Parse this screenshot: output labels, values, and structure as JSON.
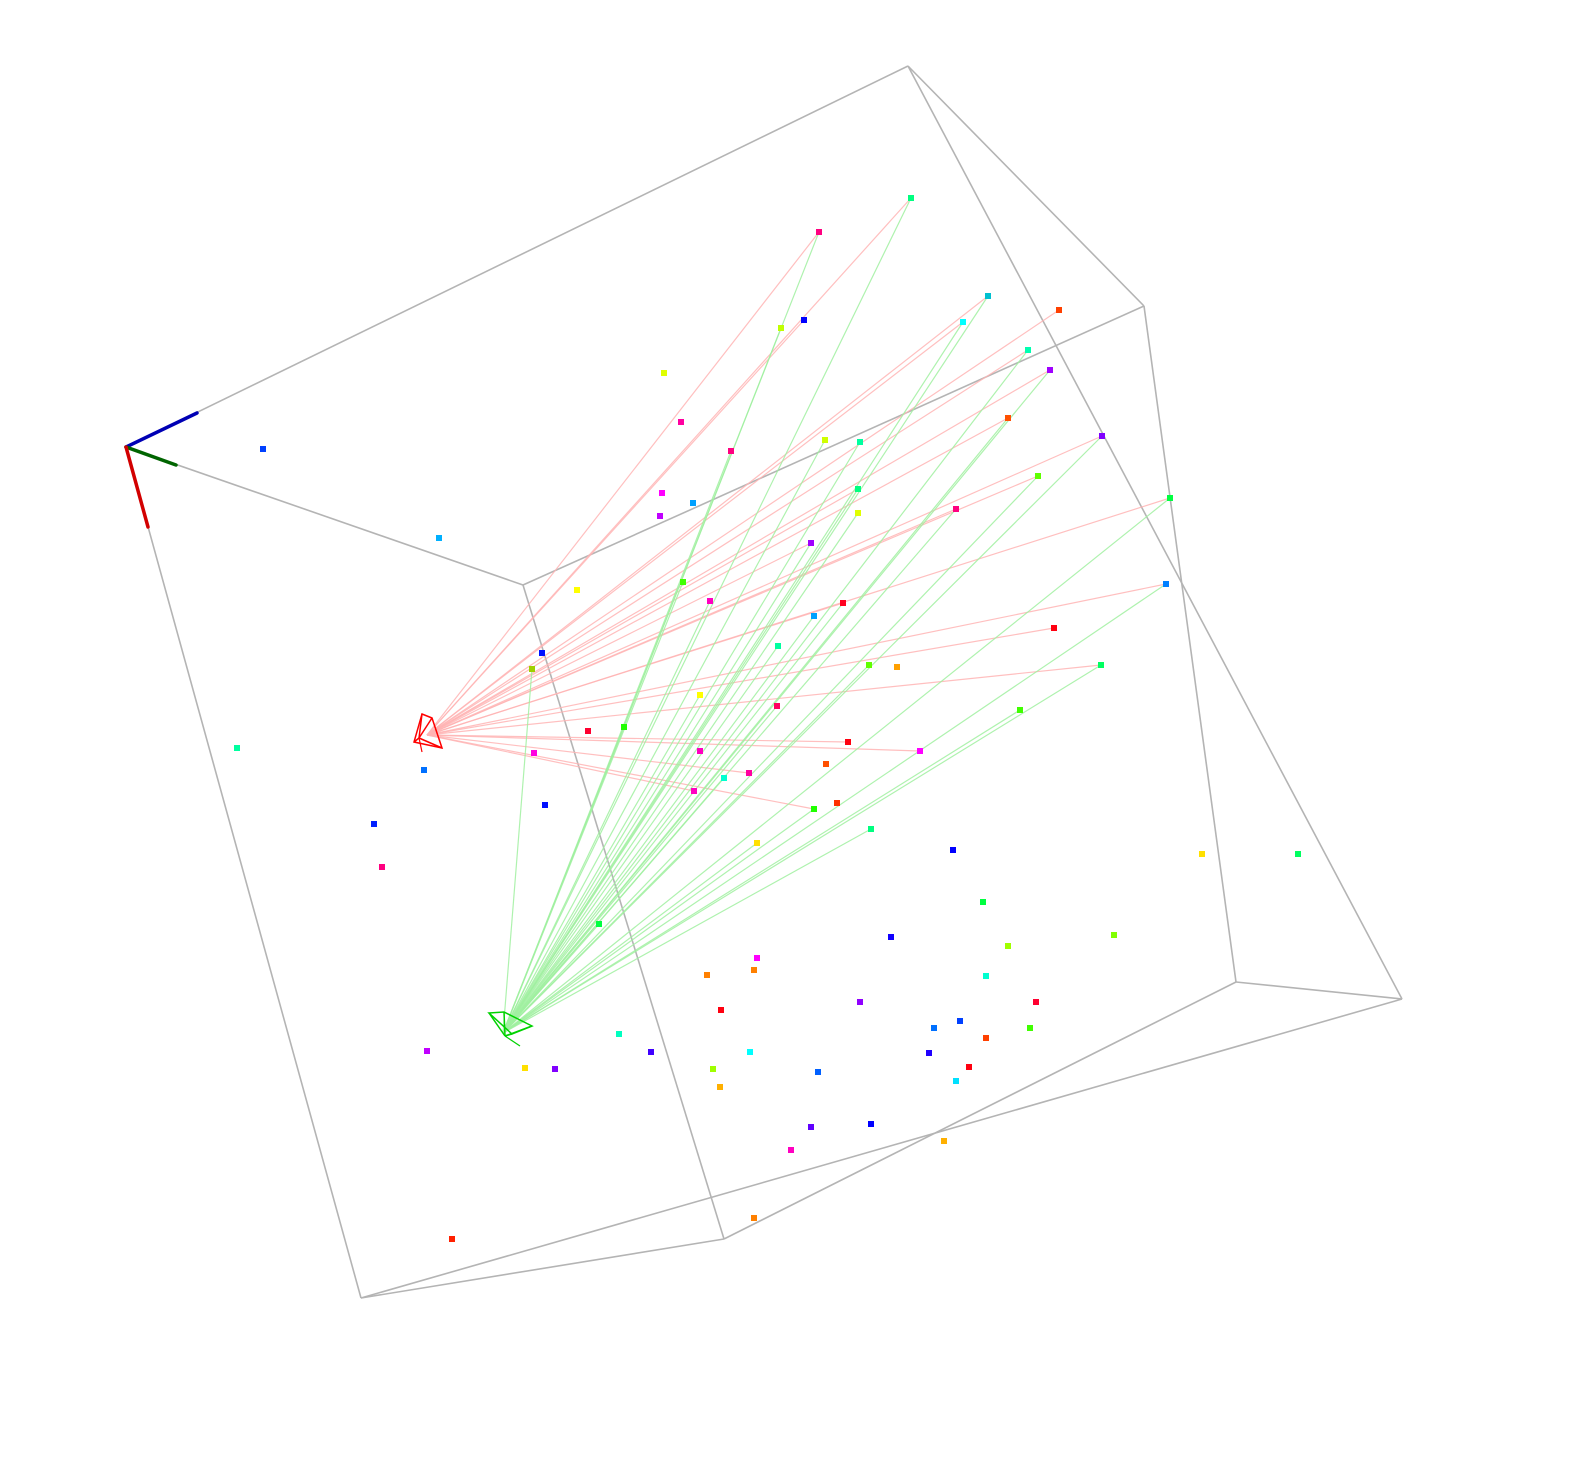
{
  "scene": {
    "background": "#ffffff",
    "box_color": "#b4b4b4",
    "axis_colors": {
      "x": "#0000b4",
      "y": "#006400",
      "z": "#d20000"
    },
    "camera_1": {
      "color": "#ff0000",
      "ray_color": "#ffb4b4"
    },
    "camera_2": {
      "color": "#00d200",
      "ray_color": "#a0f0a0"
    },
    "point_count": 97
  }
}
